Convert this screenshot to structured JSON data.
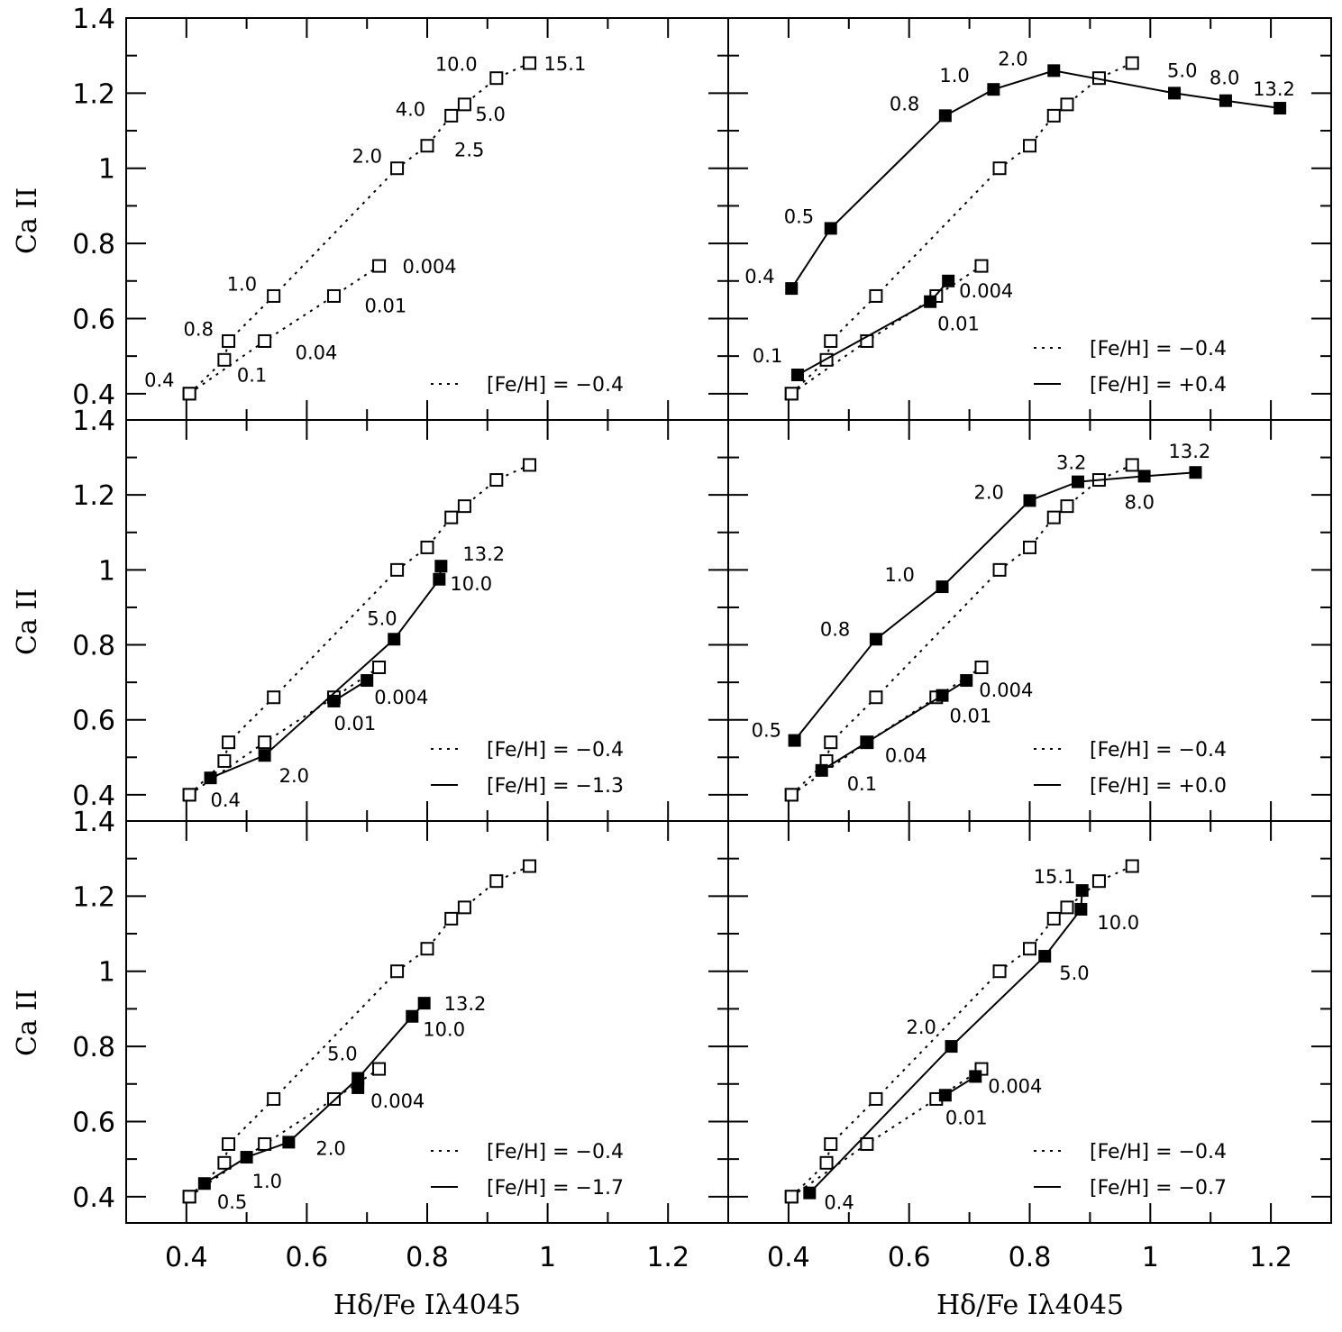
{
  "figure": {
    "ylabel": "Ca II",
    "xlabel": "Hδ/Fe Iλ4045",
    "xticks": [
      "0.4",
      "0.6",
      "0.8",
      "1",
      "1.2"
    ],
    "yticks": [
      "0.4",
      "0.6",
      "0.8",
      "1",
      "1.2",
      "1.4"
    ]
  },
  "chart_data": [
    {
      "type": "line",
      "panel": "top-left",
      "xlim": [
        0.3,
        1.3
      ],
      "ylim": [
        0.33,
        1.4
      ],
      "xlabel": "",
      "ylabel": "Ca II",
      "legend": [
        {
          "text": "[Fe/H] = −0.4",
          "style": "dotted"
        }
      ],
      "series": [
        {
          "name": "[Fe/H] = −0.4",
          "style": "dotted",
          "marker": "open-square",
          "x": [
            0.405,
            0.463,
            0.47,
            0.545,
            0.75,
            0.8,
            0.84,
            0.862,
            0.915,
            0.97
          ],
          "y": [
            0.4,
            0.49,
            0.54,
            0.66,
            1.0,
            1.06,
            1.14,
            1.17,
            1.24,
            1.28
          ],
          "labels": [
            "0.4",
            "0.1",
            "0.8",
            "1.0",
            "2.0",
            "2.5",
            "4.0",
            "5.0",
            "10.0",
            "15.1"
          ]
        },
        {
          "name": "[Fe/H] = −0.4",
          "style": "dotted",
          "marker": "open-square",
          "x": [
            0.405,
            0.53,
            0.645,
            0.72
          ],
          "y": [
            0.4,
            0.54,
            0.66,
            0.74
          ],
          "labels": [
            "",
            "0.04",
            "0.01",
            "0.004"
          ]
        }
      ]
    },
    {
      "type": "line",
      "panel": "top-right",
      "xlim": [
        0.3,
        1.3
      ],
      "ylim": [
        0.33,
        1.4
      ],
      "legend": [
        {
          "text": "[Fe/H] = −0.4",
          "style": "dotted"
        },
        {
          "text": "[Fe/H] = +0.4",
          "style": "solid"
        }
      ],
      "series": [
        {
          "name": "[Fe/H] = −0.4",
          "style": "dotted",
          "marker": "open-square",
          "x": [
            0.405,
            0.463,
            0.47,
            0.545,
            0.75,
            0.8,
            0.84,
            0.862,
            0.915,
            0.97
          ],
          "y": [
            0.4,
            0.49,
            0.54,
            0.66,
            1.0,
            1.06,
            1.14,
            1.17,
            1.24,
            1.28
          ],
          "labels": []
        },
        {
          "name": "[Fe/H] = −0.4",
          "style": "dotted",
          "marker": "open-square",
          "x": [
            0.405,
            0.53,
            0.645,
            0.72
          ],
          "y": [
            0.4,
            0.54,
            0.66,
            0.74
          ],
          "labels": []
        },
        {
          "name": "[Fe/H] = +0.4",
          "style": "solid",
          "marker": "filled-square",
          "x": [
            0.405,
            0.47,
            0.66,
            0.74,
            0.84,
            1.04,
            1.125,
            1.215
          ],
          "y": [
            0.68,
            0.84,
            1.14,
            1.21,
            1.26,
            1.2,
            1.18,
            1.16
          ],
          "labels": [
            "0.4",
            "0.5",
            "0.8",
            "1.0",
            "2.0",
            "5.0",
            "8.0",
            "13.2"
          ]
        },
        {
          "name": "[Fe/H] = +0.4",
          "style": "solid",
          "marker": "filled-square",
          "x": [
            0.415,
            0.635,
            0.665
          ],
          "y": [
            0.45,
            0.645,
            0.7
          ],
          "labels": [
            "0.1",
            "0.01",
            "0.004"
          ]
        }
      ]
    },
    {
      "type": "line",
      "panel": "middle-left",
      "xlim": [
        0.3,
        1.3
      ],
      "ylim": [
        0.33,
        1.4
      ],
      "legend": [
        {
          "text": "[Fe/H] = −0.4",
          "style": "dotted"
        },
        {
          "text": "[Fe/H] = −1.3",
          "style": "solid"
        }
      ],
      "series": [
        {
          "name": "[Fe/H] = −0.4",
          "style": "dotted",
          "marker": "open-square",
          "x": [
            0.405,
            0.463,
            0.47,
            0.545,
            0.75,
            0.8,
            0.84,
            0.862,
            0.915,
            0.97
          ],
          "y": [
            0.4,
            0.49,
            0.54,
            0.66,
            1.0,
            1.06,
            1.14,
            1.17,
            1.24,
            1.28
          ],
          "labels": []
        },
        {
          "name": "[Fe/H] = −0.4",
          "style": "dotted",
          "marker": "open-square",
          "x": [
            0.405,
            0.53,
            0.645,
            0.72
          ],
          "y": [
            0.4,
            0.54,
            0.66,
            0.74
          ],
          "labels": []
        },
        {
          "name": "[Fe/H] = −1.3",
          "style": "solid",
          "marker": "filled-square",
          "x": [
            0.44,
            0.53,
            0.745,
            0.82,
            0.823
          ],
          "y": [
            0.445,
            0.505,
            0.815,
            0.975,
            1.01
          ],
          "labels": [
            "0.4",
            "2.0",
            "5.0",
            "10.0",
            "13.2"
          ]
        },
        {
          "name": "[Fe/H] = −1.3",
          "style": "solid",
          "marker": "filled-square",
          "x": [
            0.645,
            0.7
          ],
          "y": [
            0.65,
            0.705
          ],
          "labels": [
            "0.01",
            "0.004"
          ]
        }
      ]
    },
    {
      "type": "line",
      "panel": "middle-right",
      "xlim": [
        0.3,
        1.3
      ],
      "ylim": [
        0.33,
        1.4
      ],
      "legend": [
        {
          "text": "[Fe/H] = −0.4",
          "style": "dotted"
        },
        {
          "text": "[Fe/H] = +0.0",
          "style": "solid"
        }
      ],
      "series": [
        {
          "name": "[Fe/H] = −0.4",
          "style": "dotted",
          "marker": "open-square",
          "x": [
            0.405,
            0.463,
            0.47,
            0.545,
            0.75,
            0.8,
            0.84,
            0.862,
            0.915,
            0.97
          ],
          "y": [
            0.4,
            0.49,
            0.54,
            0.66,
            1.0,
            1.06,
            1.14,
            1.17,
            1.24,
            1.28
          ],
          "labels": []
        },
        {
          "name": "[Fe/H] = −0.4",
          "style": "dotted",
          "marker": "open-square",
          "x": [
            0.405,
            0.53,
            0.645,
            0.72
          ],
          "y": [
            0.4,
            0.54,
            0.66,
            0.74
          ],
          "labels": []
        },
        {
          "name": "[Fe/H] = +0.0",
          "style": "solid",
          "marker": "filled-square",
          "x": [
            0.41,
            0.545,
            0.655,
            0.8,
            0.88,
            0.99,
            1.075
          ],
          "y": [
            0.545,
            0.815,
            0.955,
            1.185,
            1.235,
            1.25,
            1.26
          ],
          "labels": [
            "0.5",
            "0.8",
            "1.0",
            "2.0",
            "3.2",
            "8.0",
            "13.2"
          ]
        },
        {
          "name": "[Fe/H] = +0.0",
          "style": "solid",
          "marker": "filled-square",
          "x": [
            0.455,
            0.53,
            0.655,
            0.695
          ],
          "y": [
            0.465,
            0.54,
            0.665,
            0.705
          ],
          "labels": [
            "0.1",
            "0.04",
            "0.01",
            "0.004"
          ]
        }
      ]
    },
    {
      "type": "line",
      "panel": "bottom-left",
      "xlim": [
        0.3,
        1.3
      ],
      "ylim": [
        0.33,
        1.4
      ],
      "xlabel": "Hδ/Fe Iλ4045",
      "legend": [
        {
          "text": "[Fe/H] = −0.4",
          "style": "dotted"
        },
        {
          "text": "[Fe/H] = −1.7",
          "style": "solid"
        }
      ],
      "series": [
        {
          "name": "[Fe/H] = −0.4",
          "style": "dotted",
          "marker": "open-square",
          "x": [
            0.405,
            0.463,
            0.47,
            0.545,
            0.75,
            0.8,
            0.84,
            0.862,
            0.915,
            0.97
          ],
          "y": [
            0.4,
            0.49,
            0.54,
            0.66,
            1.0,
            1.06,
            1.14,
            1.17,
            1.24,
            1.28
          ],
          "labels": []
        },
        {
          "name": "[Fe/H] = −0.4",
          "style": "dotted",
          "marker": "open-square",
          "x": [
            0.405,
            0.53,
            0.645,
            0.72
          ],
          "y": [
            0.4,
            0.54,
            0.66,
            0.74
          ],
          "labels": []
        },
        {
          "name": "[Fe/H] = −1.7",
          "style": "solid",
          "marker": "filled-square",
          "x": [
            0.43,
            0.5,
            0.57,
            0.685,
            0.775,
            0.795
          ],
          "y": [
            0.435,
            0.505,
            0.545,
            0.715,
            0.88,
            0.915
          ],
          "labels": [
            "0.5",
            "1.0",
            "2.0",
            "5.0",
            "10.0",
            "13.2"
          ]
        },
        {
          "name": "[Fe/H] = −1.7",
          "style": "solid",
          "marker": "filled-square",
          "x": [
            0.685
          ],
          "y": [
            0.69
          ],
          "labels": [
            "0.004"
          ]
        }
      ]
    },
    {
      "type": "line",
      "panel": "bottom-right",
      "xlim": [
        0.3,
        1.3
      ],
      "ylim": [
        0.33,
        1.4
      ],
      "xlabel": "Hδ/Fe Iλ4045",
      "legend": [
        {
          "text": "[Fe/H] = −0.4",
          "style": "dotted"
        },
        {
          "text": "[Fe/H] = −0.7",
          "style": "solid"
        }
      ],
      "series": [
        {
          "name": "[Fe/H] = −0.4",
          "style": "dotted",
          "marker": "open-square",
          "x": [
            0.405,
            0.463,
            0.47,
            0.545,
            0.75,
            0.8,
            0.84,
            0.862,
            0.915,
            0.97
          ],
          "y": [
            0.4,
            0.49,
            0.54,
            0.66,
            1.0,
            1.06,
            1.14,
            1.17,
            1.24,
            1.28
          ],
          "labels": []
        },
        {
          "name": "[Fe/H] = −0.4",
          "style": "dotted",
          "marker": "open-square",
          "x": [
            0.405,
            0.53,
            0.645,
            0.72
          ],
          "y": [
            0.4,
            0.54,
            0.66,
            0.74
          ],
          "labels": []
        },
        {
          "name": "[Fe/H] = −0.7",
          "style": "solid",
          "marker": "filled-square",
          "x": [
            0.435,
            0.67,
            0.825,
            0.885,
            0.887
          ],
          "y": [
            0.41,
            0.8,
            1.04,
            1.165,
            1.215
          ],
          "labels": [
            "0.4",
            "2.0",
            "5.0",
            "10.0",
            "15.1"
          ]
        },
        {
          "name": "[Fe/H] = −0.7",
          "style": "solid",
          "marker": "filled-square",
          "x": [
            0.66,
            0.71
          ],
          "y": [
            0.67,
            0.72
          ],
          "labels": [
            "0.01",
            "0.004"
          ]
        }
      ]
    }
  ]
}
